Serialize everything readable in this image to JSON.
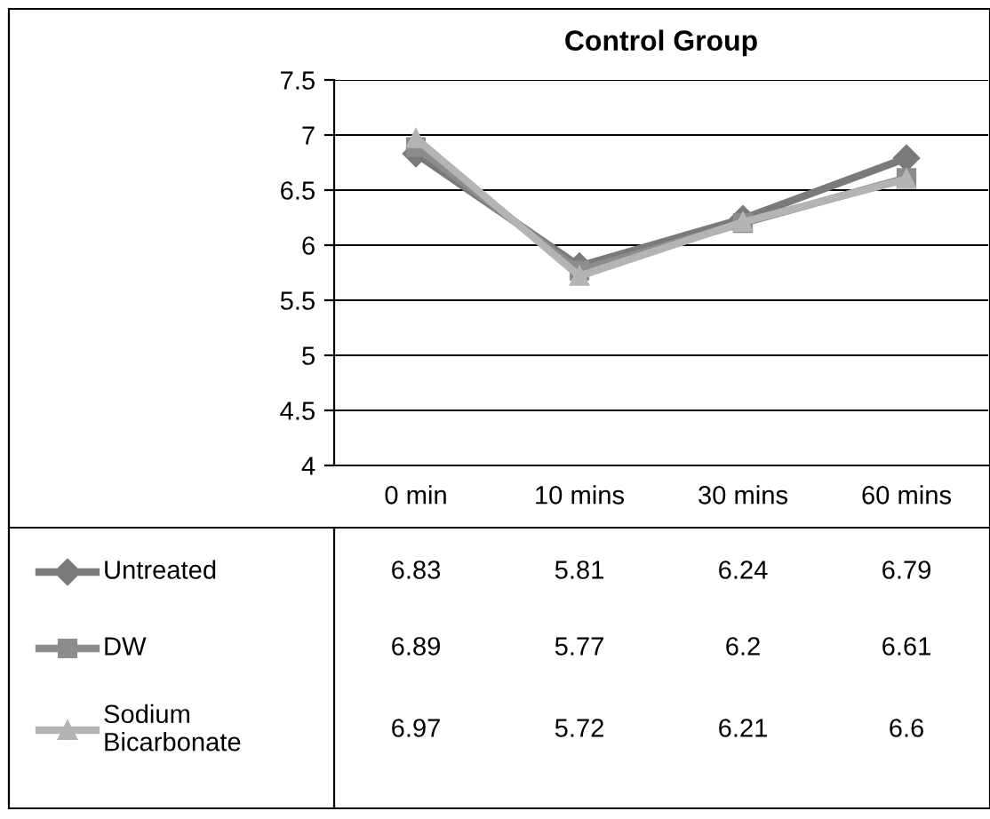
{
  "chart_data": {
    "type": "line",
    "title": "Control Group",
    "categories": [
      "0 min",
      "10 mins",
      "30 mins",
      "60 mins"
    ],
    "series": [
      {
        "name": "Untreated",
        "color": "#7a7a7a",
        "marker": "diamond",
        "values": [
          6.83,
          5.81,
          6.24,
          6.79
        ]
      },
      {
        "name": "DW",
        "color": "#8c8c8c",
        "marker": "square",
        "values": [
          6.89,
          5.77,
          6.2,
          6.61
        ]
      },
      {
        "name": "Sodium Bicarbonate",
        "color": "#b4b4b4",
        "marker": "triangle",
        "values": [
          6.97,
          5.72,
          6.21,
          6.6
        ]
      }
    ],
    "ylim": [
      4,
      7.5
    ],
    "yticks": [
      4,
      4.5,
      5,
      5.5,
      6,
      6.5,
      7,
      7.5
    ],
    "grid": "y",
    "legend": "bottom",
    "data_labels": true,
    "line_style": "solid"
  }
}
